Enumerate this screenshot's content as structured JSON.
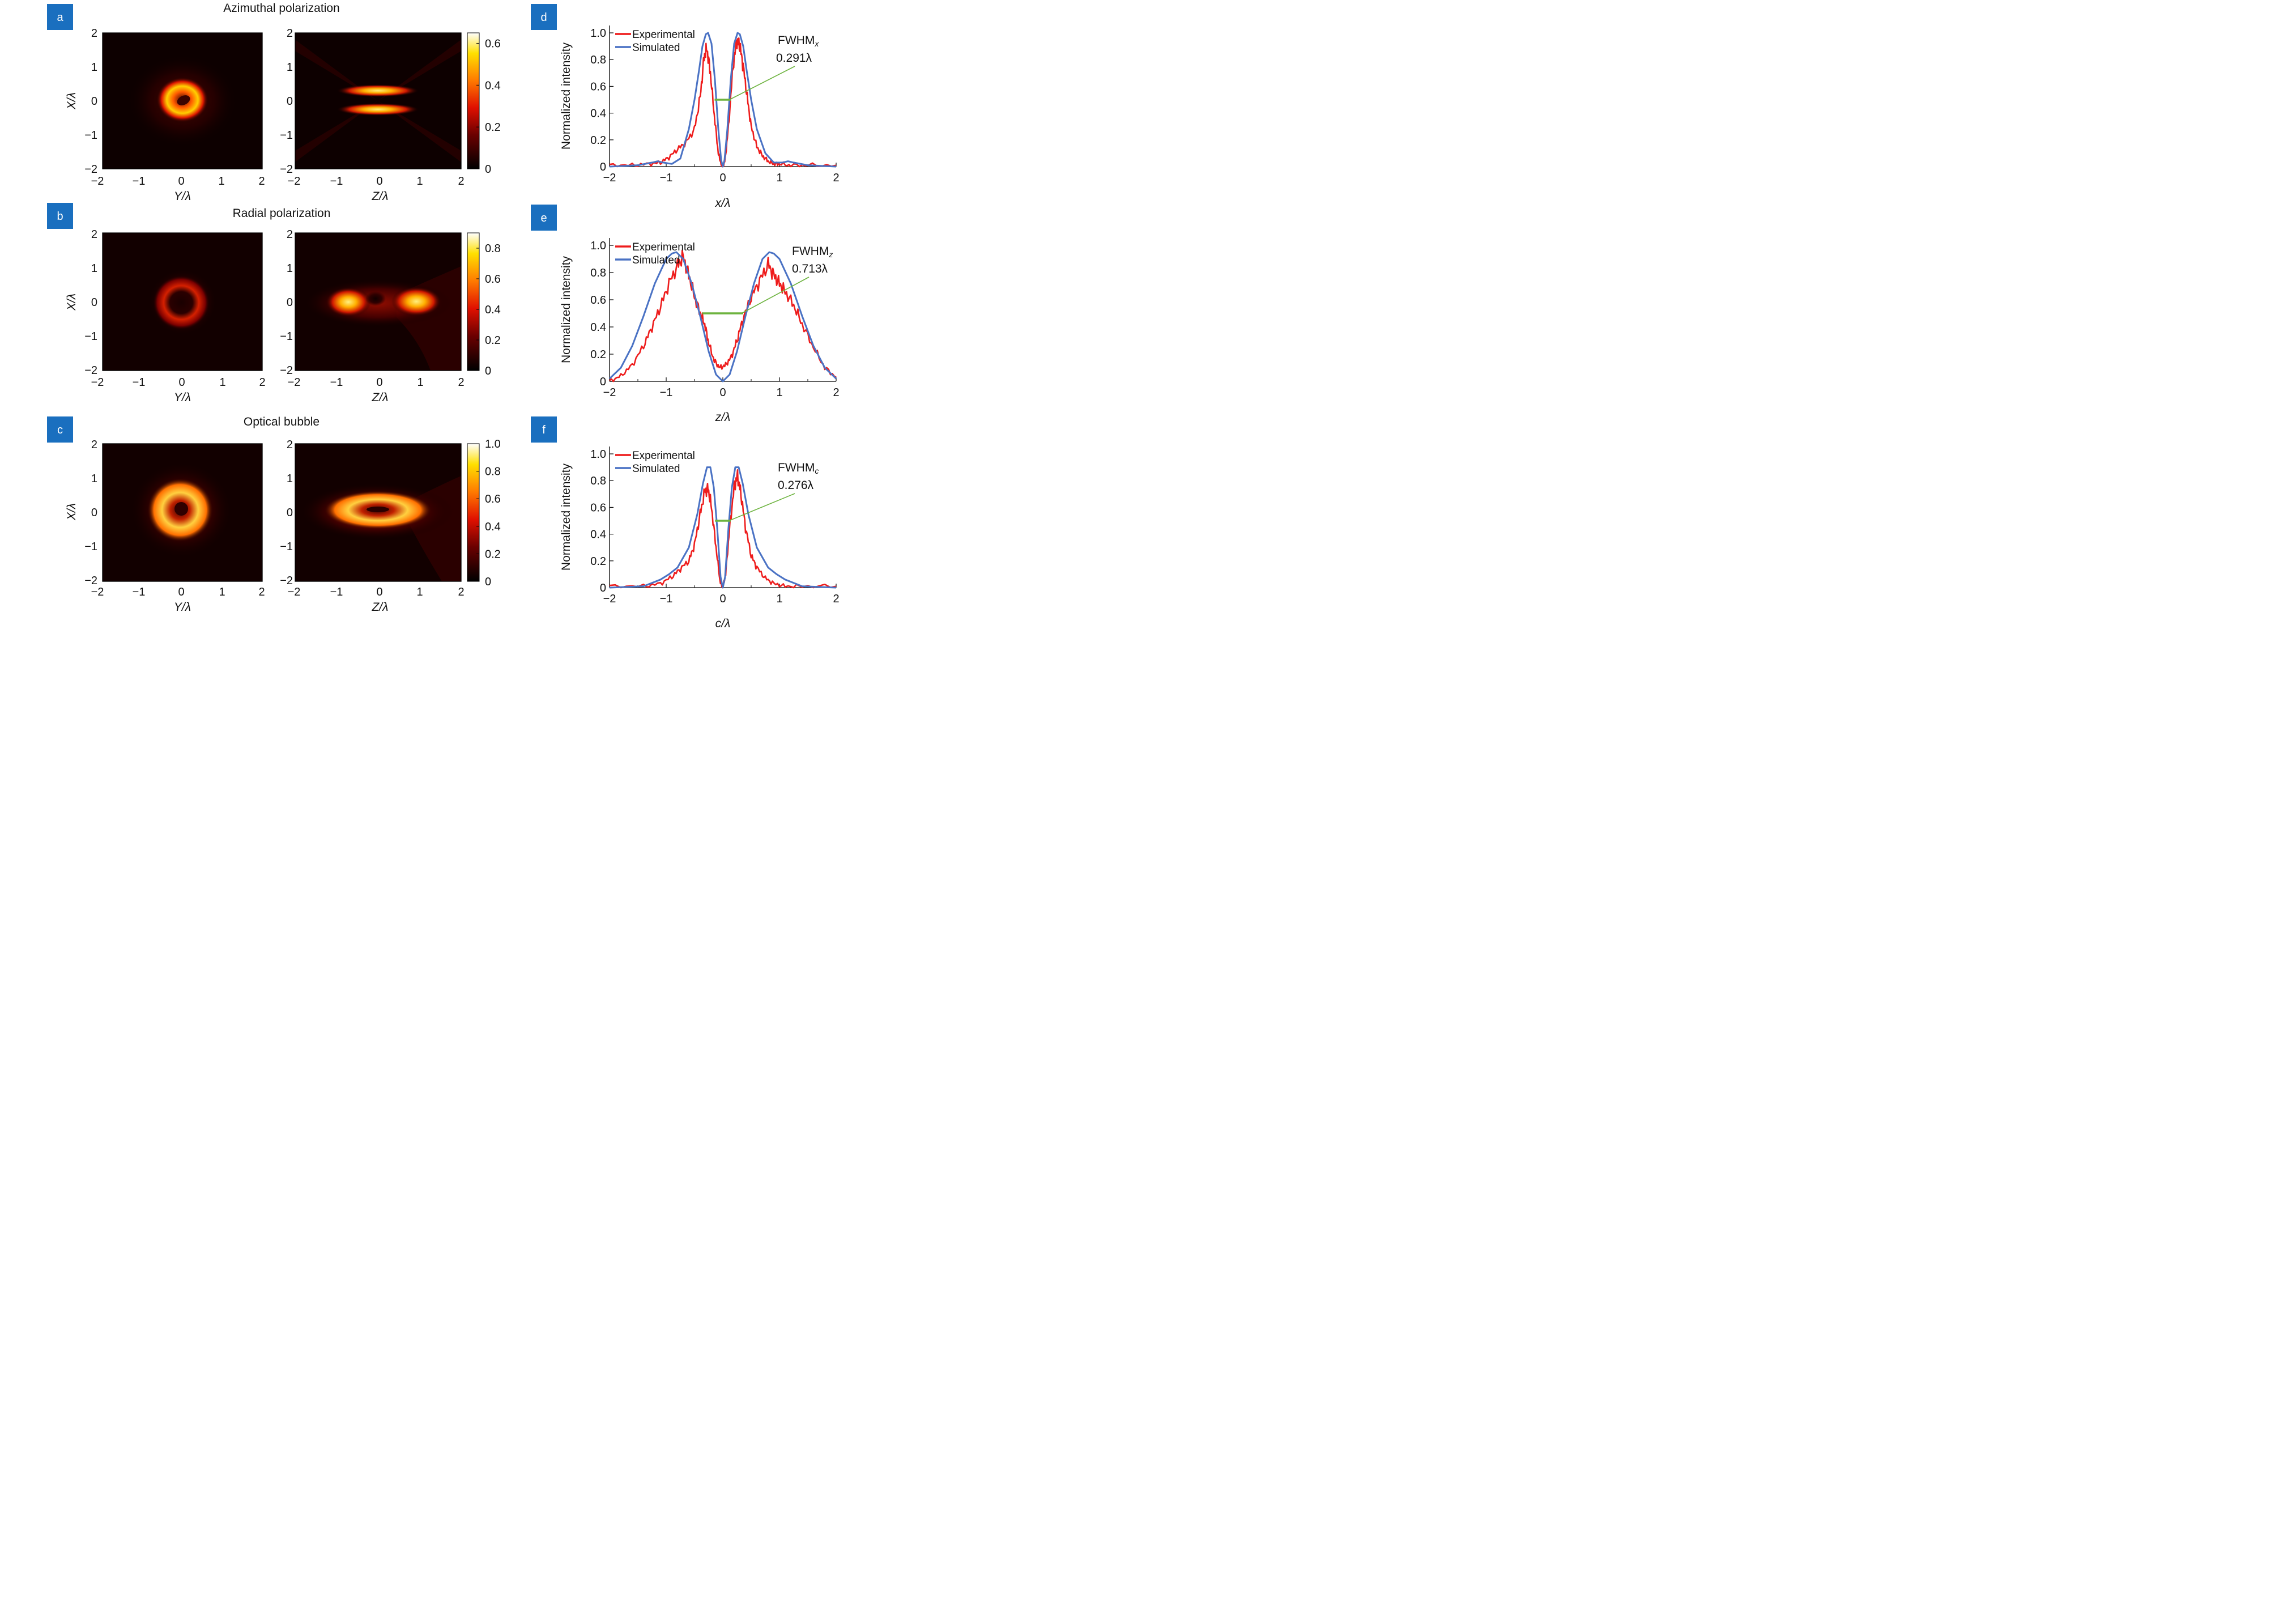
{
  "row_titles": [
    "Azimuthal polarization",
    "Radial polarization",
    "Optical bubble"
  ],
  "panel_letters": [
    "a",
    "b",
    "c",
    "d",
    "e",
    "f"
  ],
  "colors": {
    "panel_badge": "#1a6fbf",
    "experimental": "#ee1c1c",
    "simulated": "#4a72c4",
    "fwhm_marker": "#6db33f"
  },
  "heatmap_axis": {
    "ticks": [
      "−2",
      "−1",
      "0",
      "1",
      "2"
    ],
    "ylabel_prefix": "X/",
    "xlabel_left_prefix": "Y/",
    "xlabel_right_prefix": "Z/",
    "lambda": "λ"
  },
  "profile_axis": {
    "xticks": [
      "−2",
      "−1",
      "0",
      "1",
      "2"
    ],
    "yticks": [
      "0",
      "0.2",
      "0.4",
      "0.6",
      "0.8",
      "1.0"
    ],
    "ylabel": "Normalized intensity",
    "legend_experimental": "Experimental",
    "legend_simulated": "Simulated"
  },
  "chart_data": [
    {
      "panel": "a",
      "type": "heatmap",
      "title": "Azimuthal polarization",
      "description": "Transverse (Y-X) and longitudinal (Z-X) intensity maps; hot colormap",
      "xlim": [
        -2,
        2
      ],
      "ylim": [
        -2,
        2
      ],
      "colorbar": {
        "ticks": [
          "0",
          "0.2",
          "0.4",
          "0.6"
        ],
        "max": 0.65
      }
    },
    {
      "panel": "b",
      "type": "heatmap",
      "title": "Radial polarization",
      "xlim": [
        -2,
        2
      ],
      "ylim": [
        -2,
        2
      ],
      "colorbar": {
        "ticks": [
          "0",
          "0.2",
          "0.4",
          "0.6",
          "0.8"
        ],
        "max": 0.9
      }
    },
    {
      "panel": "c",
      "type": "heatmap",
      "title": "Optical bubble",
      "xlim": [
        -2,
        2
      ],
      "ylim": [
        -2,
        2
      ],
      "colorbar": {
        "ticks": [
          "0",
          "0.2",
          "0.4",
          "0.6",
          "0.8",
          "1.0"
        ],
        "max": 1.0
      }
    },
    {
      "panel": "d",
      "type": "line",
      "xlabel": "x/λ",
      "ylabel": "Normalized intensity",
      "xlim": [
        -2,
        2
      ],
      "ylim": [
        0,
        1.1
      ],
      "fwhm_label": "FWHM",
      "fwhm_sub": "x",
      "fwhm_value": "0.291λ",
      "fwhm_level": 0.5,
      "fwhm_x": [
        -0.145,
        0.145
      ],
      "series": [
        {
          "name": "Experimental",
          "x": [
            -2,
            -1.6,
            -1.3,
            -1.1,
            -0.95,
            -0.8,
            -0.65,
            -0.5,
            -0.4,
            -0.33,
            -0.28,
            -0.22,
            -0.15,
            -0.08,
            -0.03,
            0,
            0.04,
            0.1,
            0.18,
            0.25,
            0.3,
            0.36,
            0.43,
            0.5,
            0.6,
            0.7,
            0.8,
            0.9,
            1.0,
            1.2,
            1.5,
            2
          ],
          "y": [
            0.01,
            0.01,
            0.02,
            0.03,
            0.07,
            0.13,
            0.18,
            0.28,
            0.52,
            0.82,
            0.88,
            0.7,
            0.38,
            0.1,
            0.02,
            0.0,
            0.05,
            0.3,
            0.75,
            0.95,
            0.9,
            0.75,
            0.52,
            0.3,
            0.15,
            0.08,
            0.04,
            0.02,
            0.02,
            0.01,
            0.01,
            0.01
          ]
        },
        {
          "name": "Simulated",
          "x": [
            -2,
            -1.5,
            -1.25,
            -1.15,
            -1.05,
            -0.9,
            -0.75,
            -0.6,
            -0.5,
            -0.42,
            -0.36,
            -0.3,
            -0.26,
            -0.2,
            -0.14,
            -0.08,
            -0.03,
            0,
            0.03,
            0.08,
            0.14,
            0.2,
            0.26,
            0.3,
            0.36,
            0.42,
            0.5,
            0.6,
            0.75,
            0.9,
            1.05,
            1.15,
            1.25,
            1.5,
            2
          ],
          "y": [
            0.0,
            0.01,
            0.03,
            0.04,
            0.03,
            0.02,
            0.06,
            0.28,
            0.5,
            0.72,
            0.9,
            0.99,
            1.0,
            0.92,
            0.65,
            0.28,
            0.05,
            0.0,
            0.05,
            0.28,
            0.65,
            0.92,
            1.0,
            0.99,
            0.9,
            0.72,
            0.5,
            0.28,
            0.1,
            0.03,
            0.03,
            0.04,
            0.03,
            0.01,
            0.0
          ]
        }
      ]
    },
    {
      "panel": "e",
      "type": "line",
      "xlabel": "z/λ",
      "ylabel": "Normalized intensity",
      "xlim": [
        -2,
        2
      ],
      "ylim": [
        0,
        1.1
      ],
      "fwhm_label": "FWHM",
      "fwhm_sub": "z",
      "fwhm_value": "0.713λ",
      "fwhm_level": 0.5,
      "fwhm_x": [
        -0.36,
        0.36
      ],
      "series": [
        {
          "name": "Experimental",
          "x": [
            -2,
            -1.8,
            -1.6,
            -1.4,
            -1.25,
            -1.1,
            -0.95,
            -0.8,
            -0.7,
            -0.6,
            -0.5,
            -0.4,
            -0.32,
            -0.25,
            -0.15,
            -0.05,
            0.05,
            0.15,
            0.25,
            0.35,
            0.5,
            0.65,
            0.8,
            0.9,
            1.0,
            1.1,
            1.25,
            1.4,
            1.6,
            1.8,
            2
          ],
          "y": [
            0.0,
            0.04,
            0.12,
            0.26,
            0.4,
            0.55,
            0.72,
            0.85,
            0.92,
            0.78,
            0.62,
            0.5,
            0.42,
            0.28,
            0.15,
            0.1,
            0.12,
            0.18,
            0.3,
            0.45,
            0.62,
            0.74,
            0.86,
            0.78,
            0.72,
            0.66,
            0.56,
            0.42,
            0.25,
            0.1,
            0.03
          ]
        },
        {
          "name": "Simulated",
          "x": [
            -2,
            -1.8,
            -1.6,
            -1.4,
            -1.2,
            -1.0,
            -0.9,
            -0.82,
            -0.7,
            -0.55,
            -0.4,
            -0.25,
            -0.12,
            0,
            0.12,
            0.25,
            0.4,
            0.55,
            0.7,
            0.82,
            0.9,
            1.0,
            1.2,
            1.4,
            1.6,
            1.8,
            2
          ],
          "y": [
            0.02,
            0.1,
            0.26,
            0.48,
            0.72,
            0.9,
            0.94,
            0.95,
            0.9,
            0.72,
            0.48,
            0.22,
            0.05,
            0.0,
            0.05,
            0.22,
            0.48,
            0.72,
            0.9,
            0.95,
            0.94,
            0.9,
            0.72,
            0.48,
            0.26,
            0.1,
            0.02
          ]
        }
      ]
    },
    {
      "panel": "f",
      "type": "line",
      "xlabel": "c/λ",
      "ylabel": "Normalized intensity",
      "xlim": [
        -2,
        2
      ],
      "ylim": [
        0,
        1.1
      ],
      "fwhm_label": "FWHM",
      "fwhm_sub": "c",
      "fwhm_value": "0.276λ",
      "fwhm_level": 0.5,
      "fwhm_x": [
        -0.138,
        0.138
      ],
      "series": [
        {
          "name": "Experimental",
          "x": [
            -2,
            -1.4,
            -1.1,
            -0.9,
            -0.75,
            -0.6,
            -0.5,
            -0.4,
            -0.32,
            -0.26,
            -0.2,
            -0.12,
            -0.05,
            0,
            0.05,
            0.12,
            0.2,
            0.26,
            0.32,
            0.4,
            0.5,
            0.6,
            0.75,
            0.9,
            1.1,
            1.4,
            2
          ],
          "y": [
            0.01,
            0.01,
            0.03,
            0.08,
            0.14,
            0.2,
            0.32,
            0.55,
            0.72,
            0.74,
            0.6,
            0.3,
            0.05,
            0.0,
            0.1,
            0.45,
            0.75,
            0.84,
            0.7,
            0.45,
            0.24,
            0.15,
            0.07,
            0.03,
            0.01,
            0.01,
            0.01
          ]
        },
        {
          "name": "Simulated",
          "x": [
            -2,
            -1.4,
            -1.1,
            -0.95,
            -0.8,
            -0.6,
            -0.45,
            -0.35,
            -0.28,
            -0.22,
            -0.16,
            -0.1,
            -0.04,
            0,
            0.04,
            0.1,
            0.16,
            0.22,
            0.28,
            0.35,
            0.45,
            0.6,
            0.8,
            0.95,
            1.1,
            1.4,
            2
          ],
          "y": [
            0.0,
            0.01,
            0.06,
            0.1,
            0.15,
            0.3,
            0.55,
            0.78,
            0.9,
            0.9,
            0.75,
            0.45,
            0.08,
            0.0,
            0.08,
            0.45,
            0.75,
            0.9,
            0.9,
            0.78,
            0.55,
            0.3,
            0.15,
            0.1,
            0.06,
            0.01,
            0.0
          ]
        }
      ]
    }
  ]
}
